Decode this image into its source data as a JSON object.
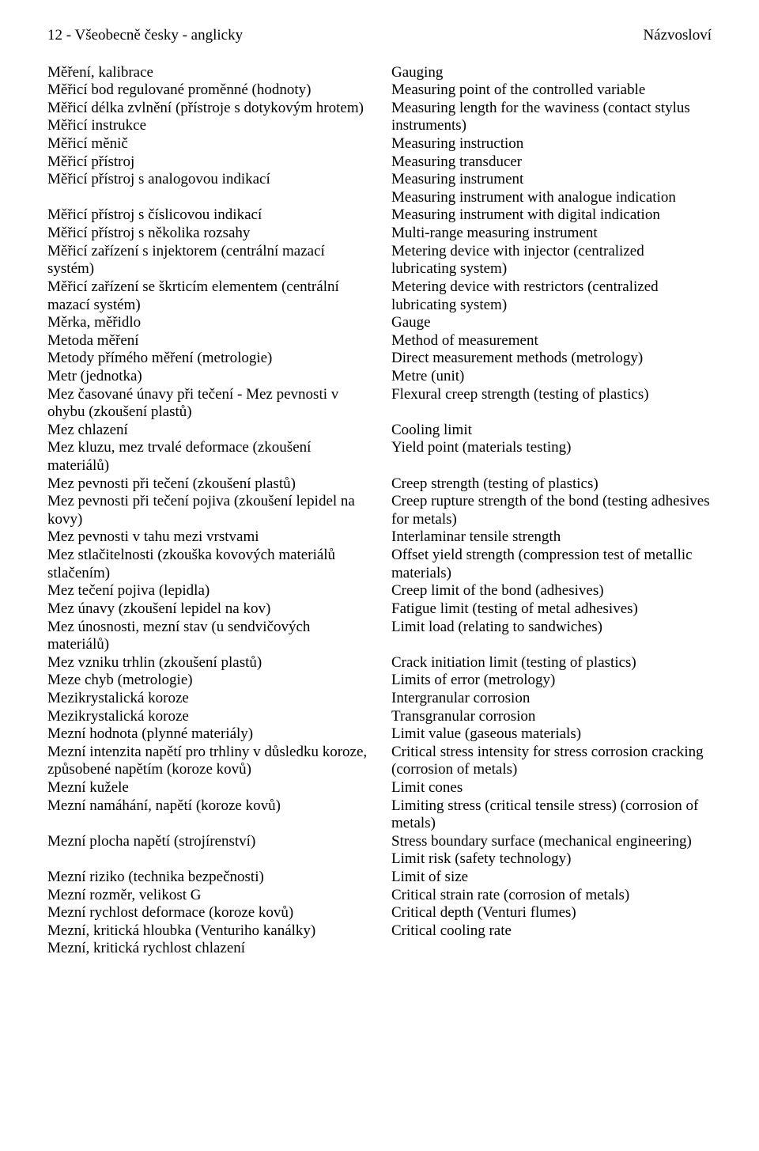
{
  "header": {
    "left": "12 - Všeobecně česky - anglicky",
    "right": "Názvosloví"
  },
  "left_col": [
    "Měření, kalibrace",
    "Měřicí bod regulované proměnné (hodnoty)",
    "Měřicí délka zvlnění (přístroje s dotykovým hrotem)",
    "Měřicí instrukce",
    "Měřicí měnič",
    "Měřicí přístroj",
    "Měřicí přístroj s analogovou indikací",
    "",
    "Měřicí přístroj s číslicovou indikací",
    "Měřicí přístroj s několika rozsahy",
    "Měřicí zařízení s injektorem (centrální mazací systém)",
    "Měřicí zařízení se škrticím elementem (centrální mazací systém)",
    "Měrka, měřidlo",
    "Metoda měření",
    "Metody přímého měření (metrologie)",
    "Metr (jednotka)",
    "Mez časované únavy při tečení - Mez pevnosti v ohybu (zkoušení plastů)",
    "Mez chlazení",
    "Mez kluzu, mez trvalé deformace (zkoušení materiálů)",
    "Mez pevnosti při tečení (zkoušení plastů)",
    "Mez pevnosti při tečení pojiva (zkoušení lepidel na kovy)",
    "Mez pevnosti v tahu mezi vrstvami",
    "Mez stlačitelnosti (zkouška kovových materiálů stlačením)",
    "Mez tečení pojiva (lepidla)",
    "Mez únavy (zkoušení lepidel na kov)",
    "Mez únosnosti, mezní stav (u sendvičových materiálů)",
    "Mez vzniku trhlin (zkoušení plastů)",
    "Meze chyb (metrologie)",
    "Mezikrystalická koroze",
    "Mezikrystalická koroze",
    "Mezní hodnota (plynné materiály)",
    "Mezní intenzita napětí pro trhliny v důsledku koroze, způsobené napětím (koroze kovů)",
    "Mezní kužele",
    "Mezní namáhání, napětí (koroze kovů)",
    "",
    "Mezní plocha napětí (strojírenství)",
    "",
    "Mezní riziko (technika bezpečnosti)",
    "Mezní rozměr, velikost G",
    "Mezní rychlost deformace (koroze kovů)",
    "Mezní, kritická hloubka (Venturiho kanálky)",
    "Mezní, kritická rychlost chlazení"
  ],
  "right_col": [
    "Gauging",
    "Measuring point of the controlled variable",
    "Measuring length for the waviness (contact stylus instruments)",
    "Measuring instruction",
    "Measuring transducer",
    "Measuring instrument",
    "Measuring instrument with analogue indication",
    "Measuring instrument with digital indication",
    "Multi-range measuring instrument",
    "Metering device with injector (centralized lubricating system)",
    "Metering device with restrictors (centralized lubricating system)",
    "Gauge",
    "Method of measurement",
    "Direct measurement methods (metrology)",
    "Metre (unit)",
    "Flexural creep strength (testing of plastics)",
    "",
    "Cooling limit",
    "Yield point (materials testing)",
    "",
    "Creep strength (testing of plastics)",
    "Creep rupture strength of the bond (testing adhesives for metals)",
    "Interlaminar tensile strength",
    "Offset yield strength (compression test of metallic materials)",
    "Creep limit of the bond (adhesives)",
    "Fatigue limit (testing of metal adhesives)",
    "Limit load (relating to sandwiches)",
    "",
    "Crack initiation limit (testing of plastics)",
    "Limits of error (metrology)",
    "Intergranular corrosion",
    "Transgranular corrosion",
    "Limit value (gaseous materials)",
    "Critical stress intensity for stress corrosion cracking (corrosion of metals)",
    "Limit cones",
    "Limiting stress (critical tensile stress) (corrosion of metals)",
    "Stress boundary surface (mechanical engineering)",
    "Limit risk (safety technology)",
    "Limit of size",
    "Critical strain rate (corrosion of metals)",
    "Critical depth (Venturi flumes)",
    "Critical cooling rate"
  ]
}
